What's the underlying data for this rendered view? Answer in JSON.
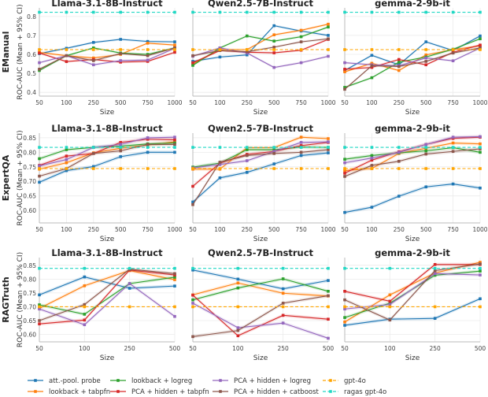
{
  "legend": [
    {
      "name": "att.-pool. probe",
      "color": "#1f77b4",
      "dashed": false
    },
    {
      "name": "lookback + tabpfn",
      "color": "#ff7f0e",
      "dashed": false
    },
    {
      "name": "lookback + logreg",
      "color": "#2ca02c",
      "dashed": false
    },
    {
      "name": "PCA + hidden + tabpfn",
      "color": "#d62728",
      "dashed": false
    },
    {
      "name": "PCA + hidden + logreg",
      "color": "#9467bd",
      "dashed": false
    },
    {
      "name": "PCA + hidden + catboost",
      "color": "#8c564b",
      "dashed": false
    },
    {
      "name": "gpt-4o",
      "color": "#ffa500",
      "dashed": true
    },
    {
      "name": "ragas gpt-4o",
      "color": "#20d8c4",
      "dashed": true
    }
  ],
  "ylabel": "ROC-AUC (Mean + 95% CI)",
  "xlabel": "Size",
  "rows": [
    "EManual",
    "ExpertQA",
    "RAGTruth"
  ],
  "chart_data": [
    {
      "type": "line",
      "row": "EManual",
      "title": "Llama-3.1-8B-Instruct",
      "x": [
        "50",
        "100",
        "250",
        "500",
        "750",
        "1000"
      ],
      "ylim": [
        0.38,
        0.845
      ],
      "yticks": [
        "0.4",
        "0.5",
        "0.6",
        "0.7",
        "0.8"
      ],
      "grid": true,
      "series": {
        "att.-pool. probe": [
          0.604,
          0.632,
          0.663,
          0.679,
          0.668,
          0.666
        ],
        "lookback + tabpfn": [
          0.61,
          0.593,
          0.581,
          0.6,
          0.659,
          0.649
        ],
        "lookback + logreg": [
          0.515,
          0.593,
          0.634,
          0.607,
          0.6,
          0.634
        ],
        "PCA + hidden + tabpfn": [
          0.607,
          0.562,
          0.573,
          0.559,
          0.563,
          0.611
        ],
        "PCA + hidden + logreg": [
          0.556,
          0.593,
          0.545,
          0.567,
          0.57,
          0.632
        ],
        "PCA + hidden + catboost": [
          0.522,
          0.593,
          0.567,
          0.604,
          0.593,
          0.634
        ],
        "gpt-4o": 0.625,
        "ragas gpt-4o": 0.822
      }
    },
    {
      "type": "line",
      "row": "EManual",
      "title": "Qwen2.5-7B-Instruct",
      "x": [
        "50",
        "100",
        "250",
        "500",
        "750",
        "1000"
      ],
      "ylim": [
        0.38,
        0.845
      ],
      "yticks": [
        "0.4",
        "0.5",
        "0.6",
        "0.7",
        "0.8"
      ],
      "grid": true,
      "series": {
        "att.-pool. probe": [
          0.563,
          0.586,
          0.597,
          0.751,
          0.723,
          0.7
        ],
        "lookback + tabpfn": [
          0.549,
          0.625,
          0.625,
          0.703,
          0.727,
          0.759
        ],
        "lookback + logreg": [
          0.542,
          0.634,
          0.697,
          0.67,
          0.693,
          0.744
        ],
        "PCA + hidden + tabpfn": [
          0.556,
          0.62,
          0.611,
          0.608,
          0.622,
          0.679
        ],
        "PCA + hidden + logreg": [
          0.59,
          0.634,
          0.607,
          0.531,
          0.556,
          0.59
        ],
        "PCA + hidden + catboost": [
          0.593,
          0.62,
          0.614,
          0.638,
          0.666,
          0.682
        ],
        "gpt-4o": 0.625,
        "ragas gpt-4o": 0.822
      }
    },
    {
      "type": "line",
      "row": "EManual",
      "title": "gemma-2-9b-it",
      "x": [
        "50",
        "100",
        "250",
        "500",
        "750",
        "1000"
      ],
      "ylim": [
        0.38,
        0.845
      ],
      "yticks": [
        "0.4",
        "0.5",
        "0.6",
        "0.7",
        "0.8"
      ],
      "grid": true,
      "series": {
        "att.-pool. probe": [
          0.515,
          0.595,
          0.545,
          0.666,
          0.62,
          0.697
        ],
        "lookback + tabpfn": [
          0.508,
          0.553,
          0.515,
          0.597,
          0.625,
          0.645
        ],
        "lookback + logreg": [
          0.426,
          0.477,
          0.559,
          0.586,
          0.627,
          0.682
        ],
        "PCA + hidden + tabpfn": [
          0.522,
          0.531,
          0.573,
          0.545,
          0.611,
          0.649
        ],
        "PCA + hidden + logreg": [
          0.556,
          0.545,
          0.54,
          0.581,
          0.566,
          0.634
        ],
        "PCA + hidden + catboost": [
          0.416,
          0.54,
          0.536,
          0.563,
          0.607,
          0.634
        ],
        "gpt-4o": 0.625,
        "ragas gpt-4o": 0.822
      }
    },
    {
      "type": "line",
      "row": "ExpertQA",
      "title": "Llama-3.1-8B-Instruct",
      "x": [
        "50",
        "100",
        "250",
        "500",
        "750",
        "1000"
      ],
      "ylim": [
        0.557,
        0.866
      ],
      "yticks": [
        "0.60",
        "0.65",
        "0.70",
        "0.75",
        "0.80",
        "0.85"
      ],
      "grid": true,
      "series": {
        "att.-pool. probe": [
          0.697,
          0.737,
          0.751,
          0.785,
          0.8,
          0.8
        ],
        "lookback + tabpfn": [
          0.742,
          0.764,
          0.798,
          0.814,
          0.825,
          0.836
        ],
        "lookback + logreg": [
          0.778,
          0.809,
          0.817,
          0.821,
          0.829,
          0.832
        ],
        "PCA + hidden + tabpfn": [
          0.755,
          0.787,
          0.796,
          0.834,
          0.845,
          0.843
        ],
        "PCA + hidden + logreg": [
          0.753,
          0.775,
          0.817,
          0.827,
          0.85,
          0.852
        ],
        "PCA + hidden + catboost": [
          0.718,
          0.744,
          0.796,
          0.805,
          0.827,
          0.827
        ],
        "gpt-4o": 0.744,
        "ragas gpt-4o": 0.817
      }
    },
    {
      "type": "line",
      "row": "ExpertQA",
      "title": "Qwen2.5-7B-Instruct",
      "x": [
        "50",
        "100",
        "250",
        "500",
        "750",
        "1000"
      ],
      "ylim": [
        0.557,
        0.866
      ],
      "yticks": [
        "0.60",
        "0.65",
        "0.70",
        "0.75",
        "0.80",
        "0.85"
      ],
      "grid": true,
      "series": {
        "att.-pool. probe": [
          0.629,
          0.712,
          0.731,
          0.76,
          0.789,
          0.798
        ],
        "lookback + tabpfn": [
          0.742,
          0.742,
          0.816,
          0.816,
          0.852,
          0.847
        ],
        "lookback + logreg": [
          0.749,
          0.763,
          0.809,
          0.809,
          0.818,
          0.817
        ],
        "PCA + hidden + tabpfn": [
          0.683,
          0.763,
          0.793,
          0.803,
          0.823,
          0.834
        ],
        "PCA + hidden + logreg": [
          0.746,
          0.758,
          0.771,
          0.803,
          0.834,
          0.836
        ],
        "PCA + hidden + catboost": [
          0.62,
          0.766,
          0.789,
          0.796,
          0.8,
          0.809
        ],
        "gpt-4o": 0.744,
        "ragas gpt-4o": 0.817
      }
    },
    {
      "type": "line",
      "row": "ExpertQA",
      "title": "gemma-2-9b-it",
      "x": [
        "50",
        "100",
        "250",
        "500",
        "750",
        "1000"
      ],
      "ylim": [
        0.557,
        0.866
      ],
      "yticks": [
        "0.60",
        "0.65",
        "0.70",
        "0.75",
        "0.80",
        "0.85"
      ],
      "grid": true,
      "series": {
        "att.-pool. probe": [
          0.593,
          0.611,
          0.649,
          0.681,
          0.691,
          0.677
        ],
        "lookback + tabpfn": [
          0.737,
          0.744,
          0.796,
          0.814,
          0.832,
          0.829
        ],
        "lookback + logreg": [
          0.776,
          0.789,
          0.798,
          0.805,
          0.816,
          0.8
        ],
        "PCA + hidden + tabpfn": [
          0.728,
          0.773,
          0.802,
          0.827,
          0.848,
          0.852
        ],
        "PCA + hidden + logreg": [
          0.764,
          0.78,
          0.8,
          0.827,
          0.852,
          0.854
        ],
        "PCA + hidden + catboost": [
          0.717,
          0.755,
          0.769,
          0.794,
          0.803,
          0.812
        ],
        "gpt-4o": 0.744,
        "ragas gpt-4o": 0.817
      }
    },
    {
      "type": "line",
      "row": "RAGTruth",
      "title": "Llama-3.1-8B-Instruct",
      "x": [
        "50",
        "100",
        "250",
        "500"
      ],
      "ylim": [
        0.573,
        0.878
      ],
      "yticks": [
        "0.60",
        "0.65",
        "0.70",
        "0.75",
        "0.80",
        "0.85"
      ],
      "grid": true,
      "series": {
        "att.-pool. probe": [
          0.743,
          0.808,
          0.767,
          0.775
        ],
        "lookback + tabpfn": [
          0.694,
          0.776,
          0.831,
          0.798
        ],
        "lookback + logreg": [
          0.707,
          0.673,
          0.784,
          0.807
        ],
        "PCA + hidden + tabpfn": [
          0.638,
          0.652,
          0.833,
          0.815
        ],
        "PCA + hidden + logreg": [
          0.692,
          0.635,
          0.784,
          0.665
        ],
        "PCA + hidden + catboost": [
          0.65,
          0.708,
          0.836,
          0.82
        ],
        "gpt-4o": 0.7,
        "ragas gpt-4o": 0.839
      }
    },
    {
      "type": "line",
      "row": "RAGTruth",
      "title": "Qwen2.5-7B-Instruct",
      "x": [
        "50",
        "100",
        "250",
        "500"
      ],
      "ylim": [
        0.573,
        0.878
      ],
      "yticks": [
        "0.60",
        "0.65",
        "0.70",
        "0.75",
        "0.80",
        "0.85"
      ],
      "grid": true,
      "series": {
        "att.-pool. probe": [
          0.833,
          0.8,
          0.765,
          0.795
        ],
        "lookback + tabpfn": [
          0.743,
          0.786,
          0.749,
          0.739
        ],
        "lookback + logreg": [
          0.725,
          0.768,
          0.801,
          0.756
        ],
        "PCA + hidden + tabpfn": [
          0.742,
          0.595,
          0.669,
          0.655
        ],
        "PCA + hidden + logreg": [
          0.713,
          0.624,
          0.641,
          0.586
        ],
        "PCA + hidden + catboost": [
          0.592,
          0.614,
          0.713,
          0.74
        ],
        "gpt-4o": 0.7,
        "ragas gpt-4o": 0.839
      }
    },
    {
      "type": "line",
      "row": "RAGTruth",
      "title": "gemma-2-9b-it",
      "x": [
        "50",
        "100",
        "250",
        "500"
      ],
      "ylim": [
        0.573,
        0.878
      ],
      "yticks": [
        "0.60",
        "0.65",
        "0.70",
        "0.75",
        "0.80",
        "0.85"
      ],
      "grid": true,
      "series": {
        "att.-pool. probe": [
          0.633,
          0.655,
          0.658,
          0.729
        ],
        "lookback + tabpfn": [
          0.645,
          0.743,
          0.822,
          0.861
        ],
        "lookback + logreg": [
          0.661,
          0.713,
          0.814,
          0.829
        ],
        "PCA + hidden + tabpfn": [
          0.756,
          0.72,
          0.853,
          0.853
        ],
        "PCA + hidden + logreg": [
          0.692,
          0.708,
          0.82,
          0.815
        ],
        "PCA + hidden + catboost": [
          0.725,
          0.652,
          0.831,
          0.855
        ],
        "gpt-4o": 0.7,
        "ragas gpt-4o": 0.839
      }
    }
  ]
}
